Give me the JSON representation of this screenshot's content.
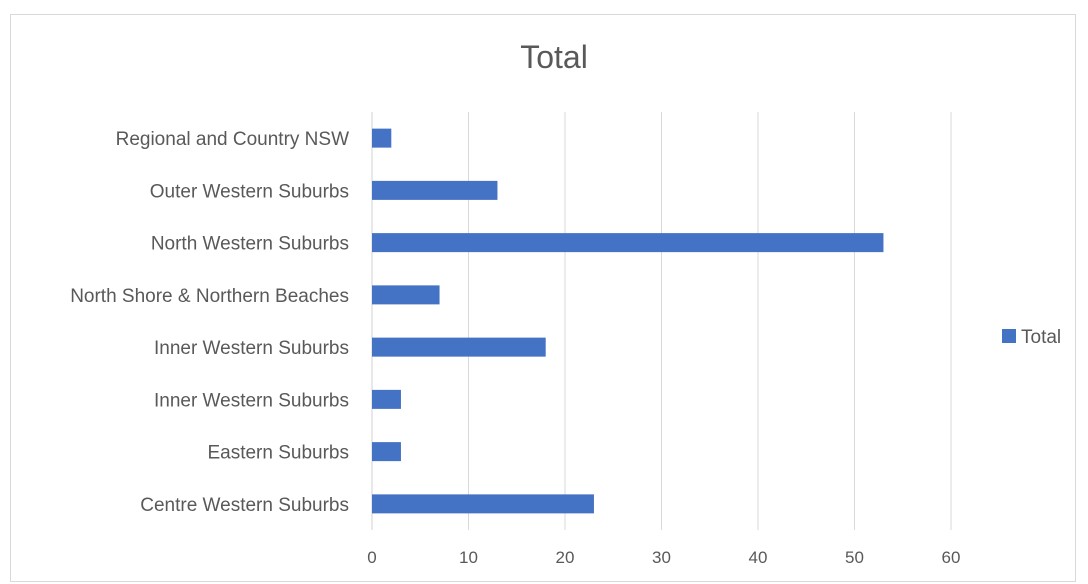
{
  "chart_data": {
    "type": "bar",
    "orientation": "horizontal",
    "title": "Total",
    "categories": [
      "Regional and Country NSW",
      "Outer Western Suburbs",
      "North Western Suburbs",
      "North Shore & Northern Beaches",
      "Inner Western Suburbs ",
      "Inner Western Suburbs",
      "Eastern Suburbs",
      "Centre Western Suburbs"
    ],
    "series": [
      {
        "name": "Total",
        "values": [
          2,
          13,
          53,
          7,
          18,
          3,
          3,
          23
        ]
      }
    ],
    "xlim": [
      0,
      65
    ],
    "xticks": [
      0,
      10,
      20,
      30,
      40,
      50,
      60
    ],
    "grid": true,
    "legend": "right",
    "bar_color": "#4472c4",
    "grid_color": "#d9d9d9",
    "text_color": "#595959"
  }
}
